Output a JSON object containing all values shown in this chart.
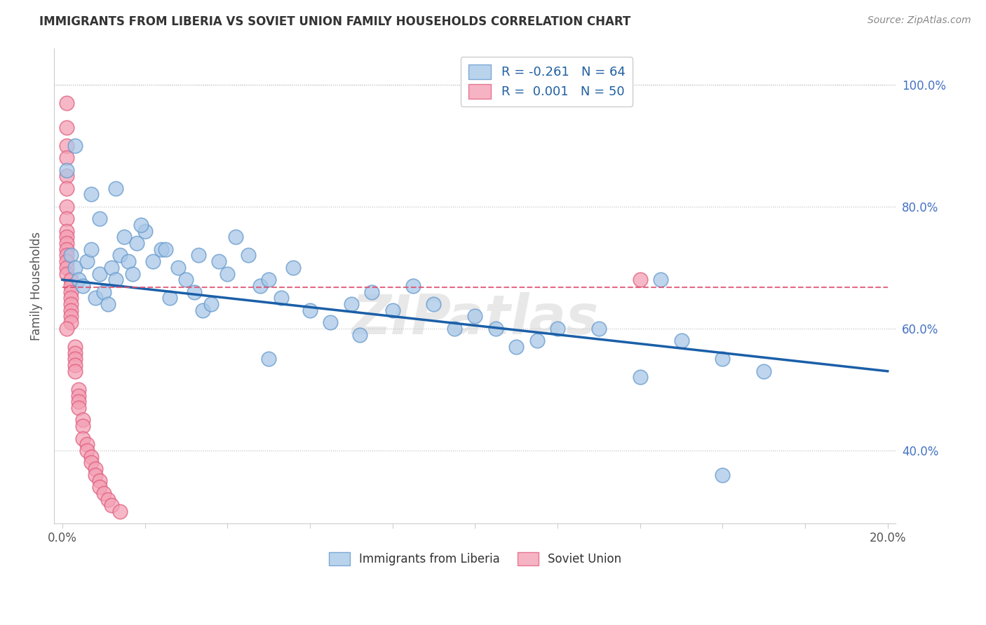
{
  "title": "IMMIGRANTS FROM LIBERIA VS SOVIET UNION FAMILY HOUSEHOLDS CORRELATION CHART",
  "source": "Source: ZipAtlas.com",
  "ylabel": "Family Households",
  "xlim": [
    -0.002,
    0.202
  ],
  "ylim": [
    0.28,
    1.06
  ],
  "yticks": [
    0.4,
    0.6,
    0.8,
    1.0
  ],
  "ytick_labels": [
    "40.0%",
    "60.0%",
    "80.0%",
    "100.0%"
  ],
  "xticks": [
    0.0,
    0.02,
    0.04,
    0.06,
    0.08,
    0.1,
    0.12,
    0.14,
    0.16,
    0.18,
    0.2
  ],
  "blue_color": "#a8c8e8",
  "blue_edge_color": "#6699cc",
  "pink_color": "#f4a0b5",
  "pink_edge_color": "#e06080",
  "blue_line_color": "#1a5fa8",
  "pink_line_color": "#e05070",
  "blue_line_y0": 0.68,
  "blue_line_y1": 0.53,
  "pink_line_y": 0.668,
  "legend_liberia_label": "R = -0.261   N = 64",
  "legend_soviet_label": "R =  0.001   N = 50",
  "legend_bottom_liberia": "Immigrants from Liberia",
  "legend_bottom_soviet": "Soviet Union",
  "liberia_x": [
    0.002,
    0.003,
    0.004,
    0.005,
    0.006,
    0.007,
    0.008,
    0.009,
    0.01,
    0.011,
    0.012,
    0.013,
    0.014,
    0.015,
    0.016,
    0.017,
    0.018,
    0.02,
    0.022,
    0.024,
    0.026,
    0.028,
    0.03,
    0.032,
    0.034,
    0.036,
    0.038,
    0.04,
    0.042,
    0.045,
    0.048,
    0.05,
    0.053,
    0.056,
    0.06,
    0.065,
    0.07,
    0.075,
    0.08,
    0.085,
    0.09,
    0.095,
    0.1,
    0.105,
    0.11,
    0.115,
    0.12,
    0.13,
    0.14,
    0.15,
    0.16,
    0.17,
    0.001,
    0.003,
    0.007,
    0.009,
    0.013,
    0.019,
    0.025,
    0.033,
    0.05,
    0.072,
    0.145,
    0.16
  ],
  "liberia_y": [
    0.72,
    0.7,
    0.68,
    0.67,
    0.71,
    0.73,
    0.65,
    0.69,
    0.66,
    0.64,
    0.7,
    0.68,
    0.72,
    0.75,
    0.71,
    0.69,
    0.74,
    0.76,
    0.71,
    0.73,
    0.65,
    0.7,
    0.68,
    0.66,
    0.63,
    0.64,
    0.71,
    0.69,
    0.75,
    0.72,
    0.67,
    0.68,
    0.65,
    0.7,
    0.63,
    0.61,
    0.64,
    0.66,
    0.63,
    0.67,
    0.64,
    0.6,
    0.62,
    0.6,
    0.57,
    0.58,
    0.6,
    0.6,
    0.52,
    0.58,
    0.55,
    0.53,
    0.86,
    0.9,
    0.82,
    0.78,
    0.83,
    0.77,
    0.73,
    0.72,
    0.55,
    0.59,
    0.68,
    0.36
  ],
  "soviet_x": [
    0.001,
    0.001,
    0.001,
    0.001,
    0.001,
    0.001,
    0.001,
    0.001,
    0.001,
    0.001,
    0.001,
    0.001,
    0.001,
    0.001,
    0.001,
    0.001,
    0.002,
    0.002,
    0.002,
    0.002,
    0.002,
    0.002,
    0.002,
    0.002,
    0.003,
    0.003,
    0.003,
    0.003,
    0.003,
    0.004,
    0.004,
    0.004,
    0.004,
    0.005,
    0.005,
    0.005,
    0.006,
    0.006,
    0.007,
    0.007,
    0.008,
    0.008,
    0.009,
    0.009,
    0.01,
    0.011,
    0.012,
    0.014,
    0.14,
    0.001
  ],
  "soviet_y": [
    0.97,
    0.93,
    0.9,
    0.88,
    0.85,
    0.83,
    0.8,
    0.78,
    0.76,
    0.75,
    0.74,
    0.73,
    0.72,
    0.71,
    0.7,
    0.69,
    0.68,
    0.67,
    0.66,
    0.65,
    0.64,
    0.63,
    0.62,
    0.61,
    0.57,
    0.56,
    0.55,
    0.54,
    0.53,
    0.5,
    0.49,
    0.48,
    0.47,
    0.45,
    0.44,
    0.42,
    0.41,
    0.4,
    0.39,
    0.38,
    0.37,
    0.36,
    0.35,
    0.34,
    0.33,
    0.32,
    0.31,
    0.3,
    0.68,
    0.6
  ]
}
